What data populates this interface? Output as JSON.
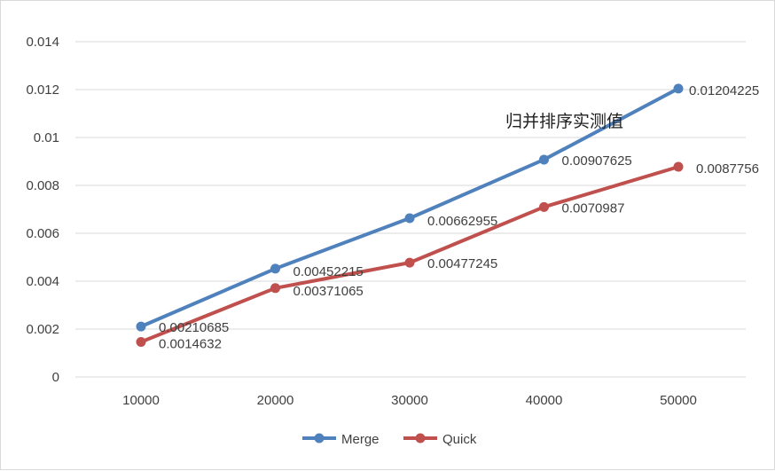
{
  "chart_data": {
    "type": "line",
    "categories": [
      "10000",
      "20000",
      "30000",
      "40000",
      "50000"
    ],
    "series": [
      {
        "name": "Merge",
        "color": "#4f81bd",
        "values": [
          0.00210685,
          0.00452215,
          0.00662955,
          0.00907625,
          0.01204225
        ],
        "labels": [
          "0.00210685",
          "0.00452215",
          "0.00662955",
          "0.00907625",
          "0.01204225"
        ]
      },
      {
        "name": "Quick",
        "color": "#c0504d",
        "values": [
          0.0014632,
          0.00371065,
          0.00477245,
          0.0070987,
          0.0087756
        ],
        "labels": [
          "0.0014632",
          "0.00371065",
          "0.00477245",
          "0.0070987",
          "0.0087756"
        ]
      }
    ],
    "ylim": [
      0,
      0.014
    ],
    "yticks": [
      "0",
      "0.002",
      "0.004",
      "0.006",
      "0.008",
      "0.01",
      "0.012",
      "0.014"
    ],
    "grid": true,
    "legend_position": "bottom",
    "annotation": "归并排序实测值"
  }
}
